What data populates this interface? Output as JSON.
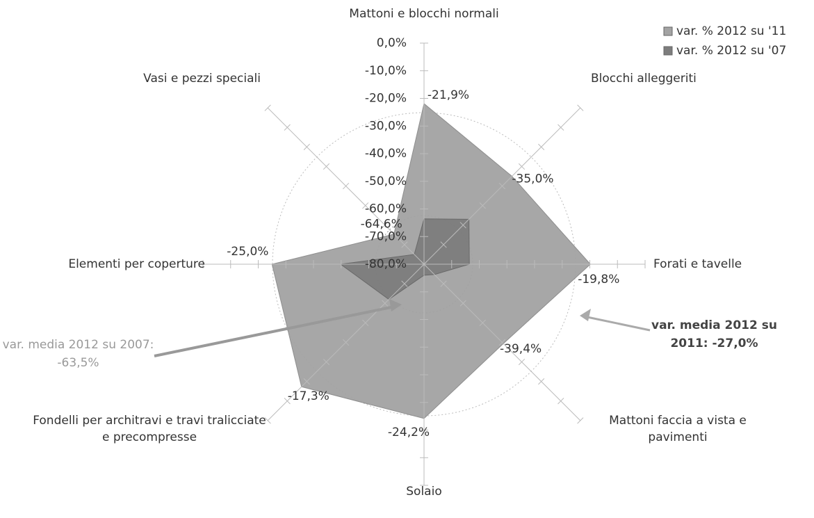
{
  "chart_data": {
    "type": "radar",
    "categories": [
      "Mattoni e blocchi normali",
      "Blocchi alleggeriti",
      "Forati e tavelle",
      "Mattoni faccia a vista e pavimenti",
      "Solaio",
      "Fondelli per architravi e travi tralicciate e precompresse",
      "Elementi per coperture",
      "Vasi e pezzi speciali"
    ],
    "series": [
      {
        "name": "var. % 2012 su '11",
        "color": "#a3a3a3",
        "values": [
          -21.9,
          -35.0,
          -19.8,
          -39.4,
          -24.2,
          -17.3,
          -25.0,
          -64.6
        ],
        "value_labels": [
          "-21,9%",
          "-35,0%",
          "-19,8%",
          "-39,4%",
          "-24,2%",
          "-17,3%",
          "-25,0%",
          "-64,6%"
        ]
      },
      {
        "name": "var. % 2012 su '07",
        "color": "#7d7d7d",
        "values": [
          -63.6,
          -57,
          -63.6,
          -74.7,
          -76,
          -62,
          -49.8,
          -75
        ]
      }
    ],
    "rlim": [
      -80,
      0
    ],
    "rticks": [
      {
        "value": 0,
        "label": "0,0%"
      },
      {
        "value": -10,
        "label": "-10,0%"
      },
      {
        "value": -20,
        "label": "-20,0%"
      },
      {
        "value": -30,
        "label": "-30,0%"
      },
      {
        "value": -40,
        "label": "-40,0%"
      },
      {
        "value": -50,
        "label": "-50,0%"
      },
      {
        "value": -60,
        "label": "-60,0%"
      },
      {
        "value": -70,
        "label": "-70,0%"
      },
      {
        "value": -80,
        "label": "-80,0%"
      }
    ],
    "annotations": [
      "var. media 2012 su 2007: -63,5%",
      "var. media 2012 su 2011: -27,0%"
    ],
    "legend": "top-right"
  }
}
